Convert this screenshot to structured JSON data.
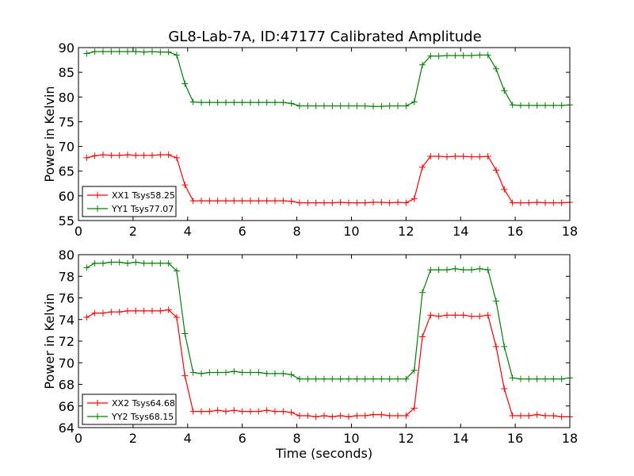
{
  "title": "GL8-Lab-7A, ID:47177 Calibrated Amplitude",
  "colors": {
    "series1": "#ff0000",
    "series2": "#008000"
  },
  "chart_data": [
    {
      "type": "line",
      "xlabel": "",
      "ylabel": "Power in Kelvin",
      "xlim": [
        0,
        18
      ],
      "ylim": [
        55,
        90
      ],
      "xticks": [
        0,
        2,
        4,
        6,
        8,
        10,
        12,
        14,
        16,
        18
      ],
      "yticks": [
        55,
        60,
        65,
        70,
        75,
        80,
        85,
        90
      ],
      "legend": "lower-left",
      "x": [
        0.3,
        0.6,
        0.9,
        1.2,
        1.5,
        1.8,
        2.1,
        2.4,
        2.7,
        3.0,
        3.3,
        3.6,
        3.9,
        4.2,
        4.5,
        4.8,
        5.1,
        5.4,
        5.7,
        6.0,
        6.3,
        6.6,
        6.9,
        7.2,
        7.5,
        7.8,
        8.1,
        8.4,
        8.7,
        9.0,
        9.3,
        9.6,
        9.9,
        10.2,
        10.5,
        10.8,
        11.1,
        11.4,
        11.7,
        12.0,
        12.3,
        12.6,
        12.9,
        13.2,
        13.5,
        13.8,
        14.1,
        14.4,
        14.7,
        15.0,
        15.3,
        15.6,
        15.9,
        16.2,
        16.5,
        16.8,
        17.1,
        17.4,
        17.7,
        18.0
      ],
      "series": [
        {
          "name": "XX1 Tsys58.25",
          "color": "#ff0000",
          "values": [
            67.7,
            68.1,
            68.3,
            68.2,
            68.2,
            68.3,
            68.2,
            68.2,
            68.2,
            68.3,
            68.3,
            67.7,
            62.2,
            59.0,
            59.0,
            59.0,
            59.0,
            59.0,
            59.0,
            59.0,
            59.0,
            59.0,
            59.0,
            59.0,
            59.0,
            58.9,
            58.6,
            58.6,
            58.6,
            58.6,
            58.6,
            58.7,
            58.6,
            58.6,
            58.6,
            58.7,
            58.7,
            58.6,
            58.7,
            58.6,
            59.4,
            65.8,
            68.0,
            68.0,
            67.9,
            68.0,
            68.0,
            67.9,
            67.9,
            68.0,
            65.2,
            61.3,
            58.6,
            58.6,
            58.6,
            58.7,
            58.6,
            58.6,
            58.6,
            58.7
          ]
        },
        {
          "name": "YY1 Tsys77.07",
          "color": "#008000",
          "values": [
            88.8,
            89.2,
            89.2,
            89.2,
            89.2,
            89.2,
            89.2,
            89.1,
            89.2,
            89.1,
            89.1,
            88.5,
            82.7,
            79.0,
            78.9,
            78.9,
            78.9,
            78.9,
            78.9,
            78.9,
            78.9,
            78.9,
            78.9,
            78.9,
            78.9,
            78.7,
            78.2,
            78.2,
            78.2,
            78.2,
            78.2,
            78.2,
            78.2,
            78.2,
            78.2,
            78.1,
            78.1,
            78.2,
            78.2,
            78.2,
            79.0,
            86.5,
            88.3,
            88.3,
            88.4,
            88.4,
            88.4,
            88.4,
            88.5,
            88.5,
            85.7,
            81.3,
            78.4,
            78.3,
            78.3,
            78.3,
            78.3,
            78.3,
            78.3,
            78.4
          ]
        }
      ]
    },
    {
      "type": "line",
      "xlabel": "Time (seconds)",
      "ylabel": "Power in Kelvin",
      "xlim": [
        0,
        18
      ],
      "ylim": [
        64,
        80
      ],
      "xticks": [
        0,
        2,
        4,
        6,
        8,
        10,
        12,
        14,
        16,
        18
      ],
      "yticks": [
        64,
        66,
        68,
        70,
        72,
        74,
        76,
        78,
        80
      ],
      "legend": "lower-left",
      "x": [
        0.3,
        0.6,
        0.9,
        1.2,
        1.5,
        1.8,
        2.1,
        2.4,
        2.7,
        3.0,
        3.3,
        3.6,
        3.9,
        4.2,
        4.5,
        4.8,
        5.1,
        5.4,
        5.7,
        6.0,
        6.3,
        6.6,
        6.9,
        7.2,
        7.5,
        7.8,
        8.1,
        8.4,
        8.7,
        9.0,
        9.3,
        9.6,
        9.9,
        10.2,
        10.5,
        10.8,
        11.1,
        11.4,
        11.7,
        12.0,
        12.3,
        12.6,
        12.9,
        13.2,
        13.5,
        13.8,
        14.1,
        14.4,
        14.7,
        15.0,
        15.3,
        15.6,
        15.9,
        16.2,
        16.5,
        16.8,
        17.1,
        17.4,
        17.7,
        18.0
      ],
      "series": [
        {
          "name": "XX2 Tsys64.68",
          "color": "#ff0000",
          "values": [
            74.2,
            74.6,
            74.6,
            74.7,
            74.7,
            74.8,
            74.8,
            74.8,
            74.8,
            74.8,
            74.9,
            74.2,
            68.8,
            65.5,
            65.5,
            65.5,
            65.6,
            65.5,
            65.6,
            65.5,
            65.5,
            65.5,
            65.6,
            65.5,
            65.5,
            65.4,
            65.1,
            65.1,
            65.0,
            65.1,
            65.0,
            65.1,
            65.0,
            65.1,
            65.1,
            65.2,
            65.2,
            65.1,
            65.1,
            65.1,
            65.8,
            72.4,
            74.4,
            74.3,
            74.4,
            74.4,
            74.4,
            74.3,
            74.3,
            74.4,
            71.5,
            67.6,
            65.1,
            65.1,
            65.1,
            65.2,
            65.1,
            65.1,
            65.0,
            65.0
          ]
        },
        {
          "name": "YY2 Tsys68.15",
          "color": "#008000",
          "values": [
            78.8,
            79.2,
            79.2,
            79.3,
            79.3,
            79.2,
            79.3,
            79.2,
            79.2,
            79.2,
            79.2,
            78.5,
            72.7,
            69.1,
            69.0,
            69.1,
            69.1,
            69.1,
            69.2,
            69.1,
            69.1,
            69.1,
            69.0,
            69.0,
            69.0,
            68.9,
            68.5,
            68.5,
            68.5,
            68.5,
            68.5,
            68.5,
            68.5,
            68.5,
            68.5,
            68.5,
            68.5,
            68.5,
            68.5,
            68.5,
            69.3,
            76.5,
            78.6,
            78.6,
            78.6,
            78.7,
            78.6,
            78.6,
            78.7,
            78.6,
            75.7,
            71.5,
            68.6,
            68.5,
            68.5,
            68.5,
            68.5,
            68.5,
            68.5,
            68.6
          ]
        }
      ]
    }
  ]
}
